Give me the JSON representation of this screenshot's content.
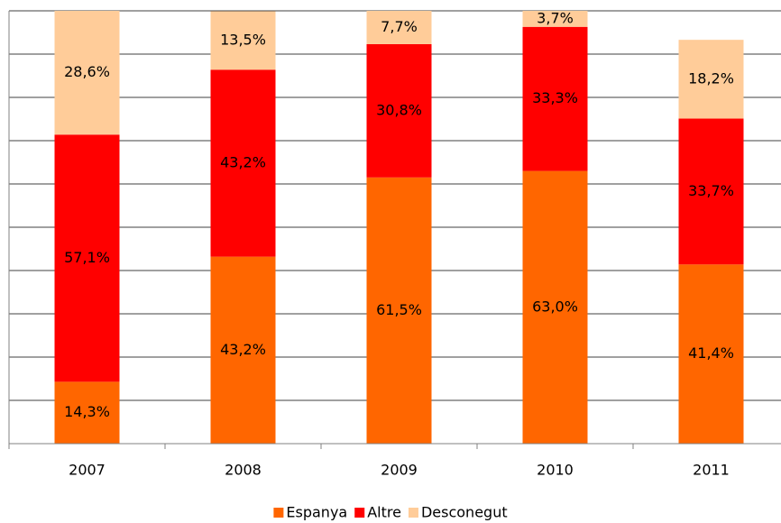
{
  "chart_data": {
    "type": "stacked_bar",
    "categories": [
      "2007",
      "2008",
      "2009",
      "2010",
      "2011"
    ],
    "series": [
      {
        "name": "Espanya",
        "color": "#ff6600",
        "values": [
          14.3,
          43.2,
          61.5,
          63.0,
          41.4
        ],
        "value_labels": [
          "14,3%",
          "43,2%",
          "61,5%",
          "63,0%",
          "41,4%"
        ]
      },
      {
        "name": "Altre",
        "color": "#ff0000",
        "values": [
          57.1,
          43.2,
          30.8,
          33.3,
          33.7
        ],
        "value_labels": [
          "57,1%",
          "43,2%",
          "30,8%",
          "33,3%",
          "33,7%"
        ]
      },
      {
        "name": "Desconegut",
        "color": "#ffcc99",
        "values": [
          28.6,
          13.5,
          7.7,
          3.7,
          18.2
        ],
        "value_labels": [
          "28,6%",
          "13,5%",
          "7,7%",
          "3,7%",
          "18,2%"
        ]
      }
    ],
    "ylim": [
      0,
      100
    ],
    "yticks": [
      0,
      10,
      20,
      30,
      40,
      50,
      60,
      70,
      80,
      90,
      100
    ],
    "grid": true,
    "legend": "bottom"
  }
}
